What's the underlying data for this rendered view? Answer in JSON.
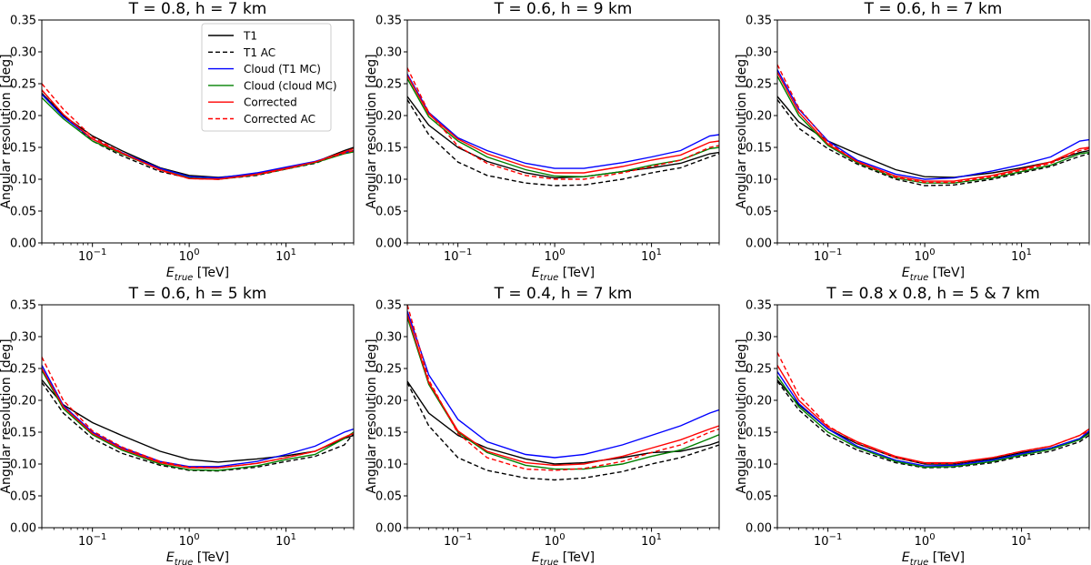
{
  "figure": {
    "ylabel": "Angular resolution [deg]",
    "xlabel_main": "E",
    "xlabel_sub": "true",
    "xlabel_unit": " [TeV]"
  },
  "legend": [
    {
      "key": "t1",
      "label": "T1",
      "color": "#000000",
      "dash": false
    },
    {
      "key": "t1ac",
      "label": "T1 AC",
      "color": "#000000",
      "dash": true
    },
    {
      "key": "cloud_t1mc",
      "label": "Cloud (T1 MC)",
      "color": "#0000ff",
      "dash": false
    },
    {
      "key": "cloud_cloudmc",
      "label": "Cloud (cloud MC)",
      "color": "#008000",
      "dash": false
    },
    {
      "key": "corr",
      "label": "Corrected",
      "color": "#ff0000",
      "dash": false
    },
    {
      "key": "corrac",
      "label": "Corrected AC",
      "color": "#ff0000",
      "dash": true
    }
  ],
  "chart_data": [
    {
      "type": "line",
      "title": "T = 0.8, h = 7 km",
      "x_scale": "log",
      "xlim": [
        0.03,
        50
      ],
      "ylim": [
        0,
        0.35
      ],
      "x_ticks": [
        {
          "value": 0.1,
          "base": "10",
          "exp": "−1"
        },
        {
          "value": 1,
          "base": "10",
          "exp": "0"
        },
        {
          "value": 10,
          "base": "10",
          "exp": "1"
        }
      ],
      "y_ticks": [
        "0.00",
        "0.05",
        "0.10",
        "0.15",
        "0.20",
        "0.25",
        "0.30",
        "0.35"
      ],
      "legend_loc": "top-right",
      "x": [
        0.03,
        0.05,
        0.1,
        0.2,
        0.5,
        1,
        2,
        5,
        10,
        20,
        40,
        50
      ],
      "series": [
        {
          "key": "t1",
          "values": [
            0.235,
            0.2,
            0.168,
            0.145,
            0.118,
            0.106,
            0.103,
            0.108,
            0.118,
            0.127,
            0.145,
            0.15
          ]
        },
        {
          "key": "t1ac",
          "values": [
            0.24,
            0.201,
            0.16,
            0.137,
            0.112,
            0.102,
            0.1,
            0.106,
            0.116,
            0.125,
            0.142,
            0.145
          ]
        },
        {
          "key": "cloud_t1mc",
          "values": [
            0.233,
            0.198,
            0.163,
            0.142,
            0.117,
            0.104,
            0.102,
            0.11,
            0.119,
            0.128,
            0.142,
            0.145
          ]
        },
        {
          "key": "cloud_cloudmc",
          "values": [
            0.228,
            0.195,
            0.16,
            0.14,
            0.115,
            0.102,
            0.1,
            0.107,
            0.116,
            0.126,
            0.14,
            0.143
          ]
        },
        {
          "key": "corr",
          "values": [
            0.24,
            0.202,
            0.163,
            0.141,
            0.115,
            0.101,
            0.1,
            0.108,
            0.117,
            0.127,
            0.143,
            0.148
          ]
        },
        {
          "key": "corrac",
          "values": [
            0.25,
            0.21,
            0.166,
            0.142,
            0.114,
            0.101,
            0.1,
            0.107,
            0.116,
            0.127,
            0.141,
            0.145
          ]
        }
      ]
    },
    {
      "type": "line",
      "title": "T = 0.6, h = 9 km",
      "x_scale": "log",
      "xlim": [
        0.03,
        50
      ],
      "ylim": [
        0,
        0.35
      ],
      "x_ticks": [
        {
          "value": 0.1,
          "base": "10",
          "exp": "−1"
        },
        {
          "value": 1,
          "base": "10",
          "exp": "0"
        },
        {
          "value": 10,
          "base": "10",
          "exp": "1"
        }
      ],
      "y_ticks": [
        "0.00",
        "0.05",
        "0.10",
        "0.15",
        "0.20",
        "0.25",
        "0.30",
        "0.35"
      ],
      "x": [
        0.03,
        0.05,
        0.1,
        0.2,
        0.5,
        1,
        2,
        5,
        10,
        20,
        40,
        50
      ],
      "series": [
        {
          "key": "t1",
          "values": [
            0.23,
            0.185,
            0.15,
            0.128,
            0.11,
            0.102,
            0.104,
            0.112,
            0.118,
            0.125,
            0.14,
            0.142
          ]
        },
        {
          "key": "t1ac",
          "values": [
            0.225,
            0.17,
            0.127,
            0.106,
            0.094,
            0.09,
            0.091,
            0.1,
            0.11,
            0.118,
            0.135,
            0.14
          ]
        },
        {
          "key": "cloud_t1mc",
          "values": [
            0.265,
            0.205,
            0.165,
            0.145,
            0.125,
            0.117,
            0.117,
            0.126,
            0.135,
            0.145,
            0.168,
            0.17
          ]
        },
        {
          "key": "cloud_cloudmc",
          "values": [
            0.258,
            0.198,
            0.16,
            0.135,
            0.115,
            0.105,
            0.104,
            0.112,
            0.122,
            0.13,
            0.148,
            0.15
          ]
        },
        {
          "key": "corr",
          "values": [
            0.263,
            0.202,
            0.163,
            0.14,
            0.12,
            0.11,
            0.11,
            0.12,
            0.13,
            0.138,
            0.158,
            0.16
          ]
        },
        {
          "key": "corrac",
          "values": [
            0.275,
            0.205,
            0.152,
            0.125,
            0.106,
            0.1,
            0.1,
            0.11,
            0.12,
            0.13,
            0.15,
            0.153
          ]
        }
      ]
    },
    {
      "type": "line",
      "title": "T = 0.6, h = 7 km",
      "x_scale": "log",
      "xlim": [
        0.03,
        50
      ],
      "ylim": [
        0,
        0.35
      ],
      "x_ticks": [
        {
          "value": 0.1,
          "base": "10",
          "exp": "−1"
        },
        {
          "value": 1,
          "base": "10",
          "exp": "0"
        },
        {
          "value": 10,
          "base": "10",
          "exp": "1"
        }
      ],
      "y_ticks": [
        "0.00",
        "0.05",
        "0.10",
        "0.15",
        "0.20",
        "0.25",
        "0.30",
        "0.35"
      ],
      "x": [
        0.03,
        0.05,
        0.1,
        0.2,
        0.5,
        1,
        2,
        5,
        10,
        20,
        40,
        50
      ],
      "series": [
        {
          "key": "t1",
          "values": [
            0.23,
            0.19,
            0.16,
            0.14,
            0.115,
            0.104,
            0.103,
            0.11,
            0.118,
            0.127,
            0.142,
            0.145
          ]
        },
        {
          "key": "t1ac",
          "values": [
            0.225,
            0.18,
            0.148,
            0.124,
            0.1,
            0.09,
            0.091,
            0.1,
            0.11,
            0.12,
            0.136,
            0.14
          ]
        },
        {
          "key": "cloud_t1mc",
          "values": [
            0.272,
            0.21,
            0.16,
            0.13,
            0.108,
            0.1,
            0.102,
            0.113,
            0.123,
            0.135,
            0.16,
            0.162
          ]
        },
        {
          "key": "cloud_cloudmc",
          "values": [
            0.262,
            0.2,
            0.153,
            0.126,
            0.102,
            0.094,
            0.094,
            0.102,
            0.112,
            0.122,
            0.14,
            0.142
          ]
        },
        {
          "key": "corr",
          "values": [
            0.268,
            0.205,
            0.155,
            0.128,
            0.105,
            0.097,
            0.097,
            0.106,
            0.116,
            0.127,
            0.148,
            0.15
          ]
        },
        {
          "key": "corrac",
          "values": [
            0.28,
            0.212,
            0.158,
            0.127,
            0.103,
            0.095,
            0.095,
            0.104,
            0.114,
            0.125,
            0.145,
            0.148
          ]
        }
      ]
    },
    {
      "type": "line",
      "title": "T = 0.6, h = 5 km",
      "x_scale": "log",
      "xlim": [
        0.03,
        50
      ],
      "ylim": [
        0,
        0.35
      ],
      "x_ticks": [
        {
          "value": 0.1,
          "base": "10",
          "exp": "−1"
        },
        {
          "value": 1,
          "base": "10",
          "exp": "0"
        },
        {
          "value": 10,
          "base": "10",
          "exp": "1"
        }
      ],
      "y_ticks": [
        "0.00",
        "0.05",
        "0.10",
        "0.15",
        "0.20",
        "0.25",
        "0.30",
        "0.35"
      ],
      "x": [
        0.03,
        0.05,
        0.1,
        0.2,
        0.5,
        1,
        2,
        5,
        10,
        20,
        40,
        50
      ],
      "series": [
        {
          "key": "t1",
          "values": [
            0.232,
            0.193,
            0.165,
            0.145,
            0.12,
            0.107,
            0.103,
            0.108,
            0.113,
            0.12,
            0.14,
            0.145
          ]
        },
        {
          "key": "t1ac",
          "values": [
            0.228,
            0.18,
            0.14,
            0.117,
            0.098,
            0.09,
            0.089,
            0.095,
            0.104,
            0.112,
            0.13,
            0.148
          ]
        },
        {
          "key": "cloud_t1mc",
          "values": [
            0.255,
            0.192,
            0.15,
            0.126,
            0.104,
            0.096,
            0.096,
            0.104,
            0.115,
            0.128,
            0.15,
            0.155
          ]
        },
        {
          "key": "cloud_cloudmc",
          "values": [
            0.247,
            0.187,
            0.146,
            0.122,
            0.1,
            0.091,
            0.09,
            0.097,
            0.107,
            0.115,
            0.14,
            0.15
          ]
        },
        {
          "key": "corr",
          "values": [
            0.25,
            0.19,
            0.148,
            0.124,
            0.102,
            0.094,
            0.094,
            0.101,
            0.11,
            0.12,
            0.142,
            0.148
          ]
        },
        {
          "key": "corrac",
          "values": [
            0.268,
            0.2,
            0.152,
            0.127,
            0.104,
            0.095,
            0.094,
            0.101,
            0.11,
            0.12,
            0.142,
            0.148
          ]
        }
      ]
    },
    {
      "type": "line",
      "title": "T = 0.4, h = 7 km",
      "x_scale": "log",
      "xlim": [
        0.03,
        50
      ],
      "ylim": [
        0,
        0.35
      ],
      "x_ticks": [
        {
          "value": 0.1,
          "base": "10",
          "exp": "−1"
        },
        {
          "value": 1,
          "base": "10",
          "exp": "0"
        },
        {
          "value": 10,
          "base": "10",
          "exp": "1"
        }
      ],
      "y_ticks": [
        "0.00",
        "0.05",
        "0.10",
        "0.15",
        "0.20",
        "0.25",
        "0.30",
        "0.35"
      ],
      "x": [
        0.03,
        0.05,
        0.1,
        0.2,
        0.5,
        1,
        2,
        5,
        10,
        20,
        40,
        50
      ],
      "series": [
        {
          "key": "t1",
          "values": [
            0.23,
            0.18,
            0.145,
            0.125,
            0.108,
            0.1,
            0.102,
            0.11,
            0.118,
            0.12,
            0.13,
            0.135
          ]
        },
        {
          "key": "t1ac",
          "values": [
            0.228,
            0.16,
            0.11,
            0.09,
            0.078,
            0.075,
            0.078,
            0.088,
            0.1,
            0.11,
            0.125,
            0.13
          ]
        },
        {
          "key": "cloud_t1mc",
          "values": [
            0.34,
            0.24,
            0.17,
            0.135,
            0.115,
            0.11,
            0.115,
            0.13,
            0.145,
            0.16,
            0.18,
            0.185
          ]
        },
        {
          "key": "cloud_cloudmc",
          "values": [
            0.33,
            0.225,
            0.15,
            0.118,
            0.098,
            0.092,
            0.092,
            0.1,
            0.112,
            0.122,
            0.14,
            0.146
          ]
        },
        {
          "key": "corr",
          "values": [
            0.335,
            0.228,
            0.152,
            0.12,
            0.102,
            0.098,
            0.1,
            0.112,
            0.125,
            0.138,
            0.155,
            0.16
          ]
        },
        {
          "key": "corrac",
          "values": [
            0.35,
            0.232,
            0.148,
            0.11,
            0.092,
            0.09,
            0.093,
            0.104,
            0.118,
            0.13,
            0.15,
            0.155
          ]
        }
      ]
    },
    {
      "type": "line",
      "title": "T = 0.8 x 0.8, h = 5 & 7 km",
      "x_scale": "log",
      "xlim": [
        0.03,
        50
      ],
      "ylim": [
        0,
        0.35
      ],
      "x_ticks": [
        {
          "value": 0.1,
          "base": "10",
          "exp": "−1"
        },
        {
          "value": 1,
          "base": "10",
          "exp": "0"
        },
        {
          "value": 10,
          "base": "10",
          "exp": "1"
        }
      ],
      "y_ticks": [
        "0.00",
        "0.05",
        "0.10",
        "0.15",
        "0.20",
        "0.25",
        "0.30",
        "0.35"
      ],
      "x": [
        0.03,
        0.05,
        0.1,
        0.2,
        0.5,
        1,
        2,
        5,
        10,
        20,
        40,
        50
      ],
      "series": [
        {
          "key": "t1",
          "values": [
            0.232,
            0.193,
            0.155,
            0.132,
            0.11,
            0.1,
            0.1,
            0.108,
            0.118,
            0.125,
            0.14,
            0.15
          ]
        },
        {
          "key": "t1ac",
          "values": [
            0.23,
            0.185,
            0.145,
            0.122,
            0.102,
            0.094,
            0.095,
            0.102,
            0.112,
            0.12,
            0.135,
            0.145
          ]
        },
        {
          "key": "cloud_t1mc",
          "values": [
            0.245,
            0.195,
            0.155,
            0.128,
            0.106,
            0.097,
            0.098,
            0.106,
            0.116,
            0.125,
            0.14,
            0.152
          ]
        },
        {
          "key": "cloud_cloudmc",
          "values": [
            0.238,
            0.19,
            0.15,
            0.126,
            0.104,
            0.095,
            0.096,
            0.104,
            0.114,
            0.123,
            0.138,
            0.148
          ]
        },
        {
          "key": "corr",
          "values": [
            0.255,
            0.2,
            0.158,
            0.135,
            0.112,
            0.102,
            0.102,
            0.11,
            0.12,
            0.128,
            0.145,
            0.155
          ]
        },
        {
          "key": "corrac",
          "values": [
            0.275,
            0.208,
            0.16,
            0.133,
            0.11,
            0.101,
            0.101,
            0.11,
            0.12,
            0.128,
            0.145,
            0.152
          ]
        }
      ]
    }
  ]
}
